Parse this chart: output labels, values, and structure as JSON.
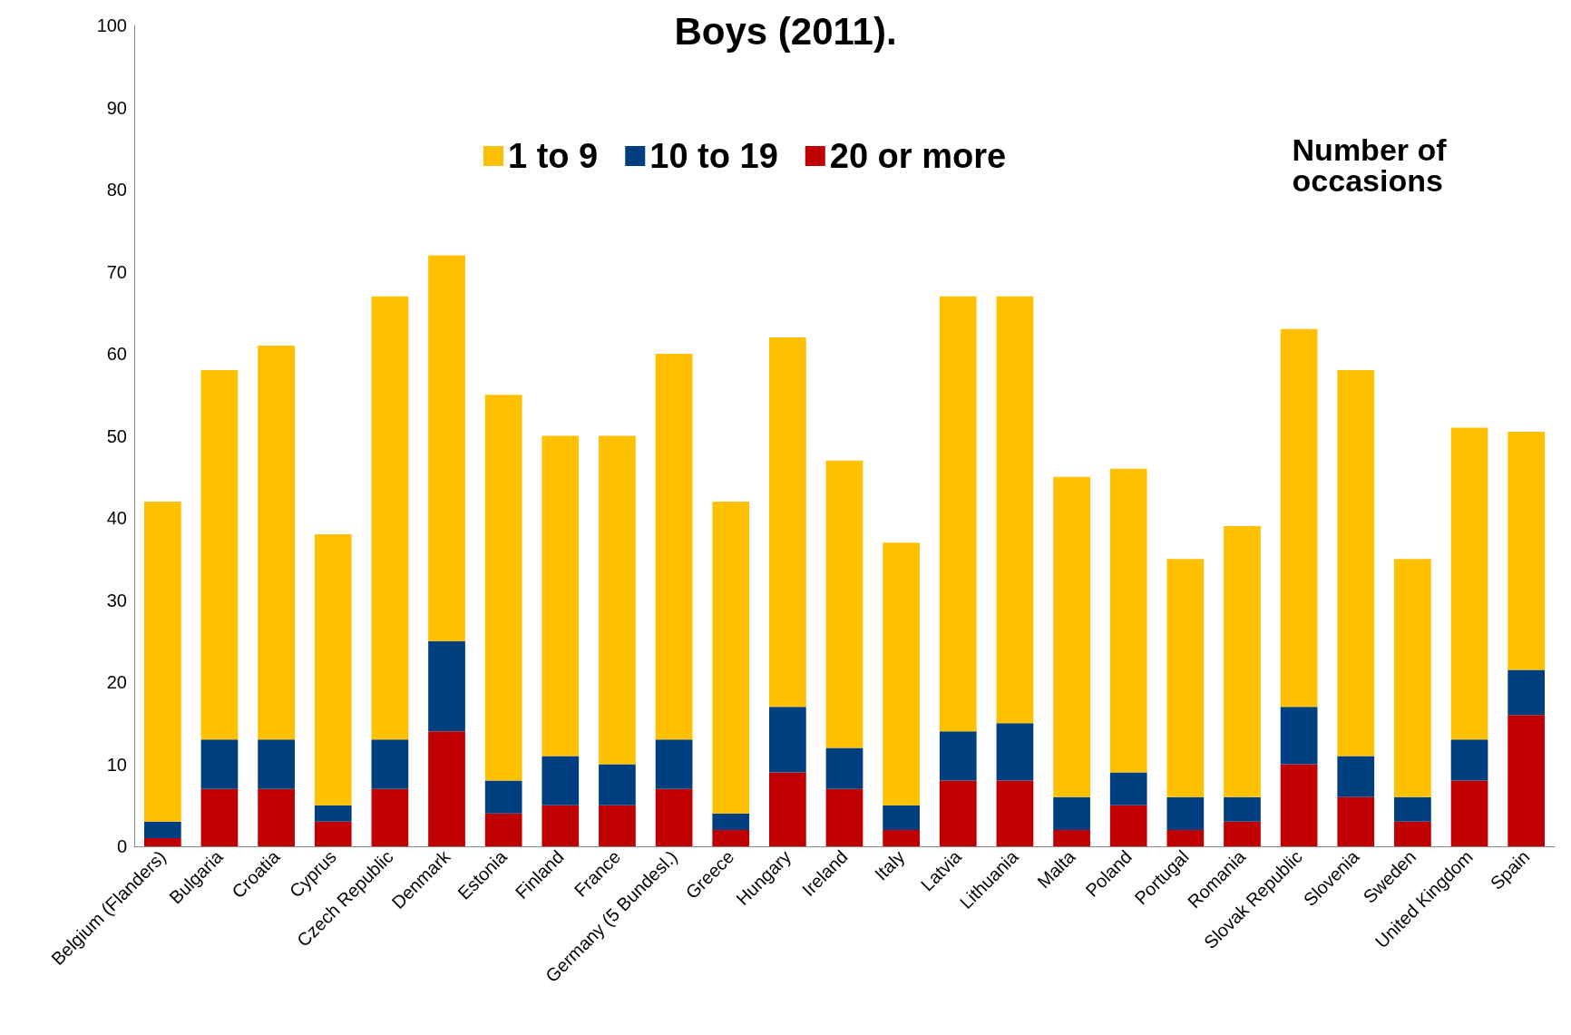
{
  "chart_data": {
    "type": "bar",
    "title": "Boys (2011).",
    "stacked": true,
    "legend": "top",
    "grid": false,
    "categories": [
      "Belgium (Flanders)",
      "Bulgaria",
      "Croatia",
      "Cyprus",
      "Czech Republic",
      "Denmark",
      "Estonia",
      "Finland",
      "France",
      "Germany (5 Bundesl.)",
      "Greece",
      "Hungary",
      "Ireland",
      "Italy",
      "Latvia",
      "Lithuania",
      "Malta",
      "Poland",
      "Portugal",
      "Romania",
      "Slovak Republic",
      "Slovenia",
      "Sweden",
      "United Kingdom",
      "Spain"
    ],
    "series": [
      {
        "name": "20 or more",
        "color": "#c00000",
        "values": [
          1,
          7,
          7,
          3,
          7,
          14,
          4,
          5,
          5,
          7,
          2,
          9,
          7,
          2,
          8,
          8,
          2,
          5,
          2,
          3,
          10,
          6,
          3,
          8,
          16
        ]
      },
      {
        "name": "10 to 19",
        "color": "#003f7f",
        "values": [
          2,
          6,
          6,
          2,
          6,
          11,
          4,
          6,
          5,
          6,
          2,
          8,
          5,
          3,
          6,
          7,
          4,
          4,
          4,
          3,
          7,
          5,
          3,
          5,
          5.5
        ]
      },
      {
        "name": "1 to 9",
        "color": "#ffc000",
        "values": [
          39,
          45,
          48,
          33,
          54,
          47,
          47,
          39,
          40,
          47,
          38,
          45,
          35,
          32,
          53,
          52,
          39,
          37,
          29,
          33,
          46,
          47,
          29,
          38,
          29
        ]
      }
    ],
    "ylim": [
      0,
      100
    ],
    "yticks": [
      0,
      10,
      20,
      30,
      40,
      50,
      60,
      70,
      80,
      90,
      100
    ],
    "annotations": [
      "Number of occasions"
    ]
  }
}
